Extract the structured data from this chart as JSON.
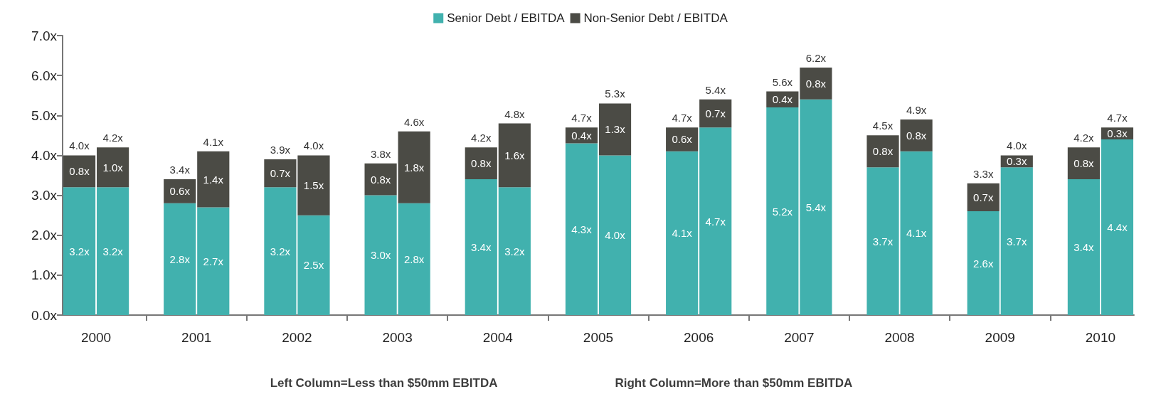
{
  "chart_data": {
    "type": "bar",
    "stacked": true,
    "categories": [
      "2000",
      null,
      null,
      "2001",
      null,
      null,
      "2002",
      null,
      null,
      "2003",
      null,
      null,
      "2004",
      null,
      null,
      "2005",
      null,
      null,
      "2006",
      null,
      null,
      "2007",
      null,
      null,
      "2008",
      null,
      null,
      "2009",
      null,
      null,
      "2010",
      null
    ],
    "series": [
      {
        "name": "Senior Debt / EBITDA",
        "color": "#41b1ae",
        "values": [
          3.2,
          3.2,
          null,
          2.8,
          2.7,
          null,
          3.2,
          2.5,
          null,
          3.0,
          2.8,
          null,
          3.4,
          3.2,
          null,
          4.3,
          4.0,
          null,
          4.1,
          4.7,
          null,
          5.2,
          5.4,
          null,
          3.7,
          4.1,
          null,
          2.6,
          3.7,
          null,
          3.4,
          4.4
        ],
        "value_labels": [
          "3.2x",
          "3.2x",
          null,
          "2.8x",
          "2.7x",
          null,
          "3.2x",
          "2.5x",
          null,
          "3.0x",
          "2.8x",
          null,
          "3.4x",
          "3.2x",
          null,
          "4.3x",
          "4.0x",
          null,
          "4.1x",
          "4.7x",
          null,
          "5.2x",
          "5.4x",
          null,
          "3.7x",
          "4.1x",
          null,
          "2.6x",
          "3.7x",
          null,
          "3.4x",
          "4.4x"
        ]
      },
      {
        "name": "Non-Senior Debt / EBITDA",
        "color": "#4b4b45",
        "values": [
          0.8,
          1.0,
          null,
          0.6,
          1.4,
          null,
          0.7,
          1.5,
          null,
          0.8,
          1.8,
          null,
          0.8,
          1.6,
          null,
          0.4,
          1.3,
          null,
          0.6,
          0.7,
          null,
          0.4,
          0.8,
          null,
          0.8,
          0.8,
          null,
          0.7,
          0.3,
          null,
          0.8,
          0.3
        ],
        "value_labels": [
          "0.8x",
          "1.0x",
          null,
          "0.6x",
          "1.4x",
          null,
          "0.7x",
          "1.5x",
          null,
          "0.8x",
          "1.8x",
          null,
          "0.8x",
          "1.6x",
          null,
          "0.4x",
          "1.3x",
          null,
          "0.6x",
          "0.7x",
          null,
          "0.4x",
          "0.8x",
          null,
          "0.8x",
          "0.8x",
          null,
          "0.7x",
          "0.3x",
          null,
          "0.8x",
          "0.3x"
        ]
      }
    ],
    "totals": [
      "4.0x",
      "4.2x",
      null,
      "3.4x",
      "4.1x",
      null,
      "3.9x",
      "4.0x",
      null,
      "3.8x",
      "4.6x",
      null,
      "4.2x",
      "4.8x",
      null,
      "4.7x",
      "5.3x",
      null,
      "4.7x",
      "5.4x",
      null,
      "5.6x",
      "6.2x",
      null,
      "4.5x",
      "4.9x",
      null,
      "3.3x",
      "4.0x",
      null,
      "4.2x",
      "4.7x"
    ],
    "ylim": [
      0,
      7
    ],
    "yticks": [
      {
        "value": 0,
        "label": "0.0x"
      },
      {
        "value": 1,
        "label": "1.0x"
      },
      {
        "value": 2,
        "label": "2.0x"
      },
      {
        "value": 3,
        "label": "3.0x"
      },
      {
        "value": 4,
        "label": "4.0x"
      },
      {
        "value": 5,
        "label": "5.0x"
      },
      {
        "value": 6,
        "label": "6.0x"
      },
      {
        "value": 7,
        "label": "7.0x"
      }
    ],
    "grid": false,
    "legend": "top",
    "annotations": [
      "Left Column=Less than $50mm EBITDA",
      "Right Column=More than $50mm EBITDA"
    ]
  }
}
